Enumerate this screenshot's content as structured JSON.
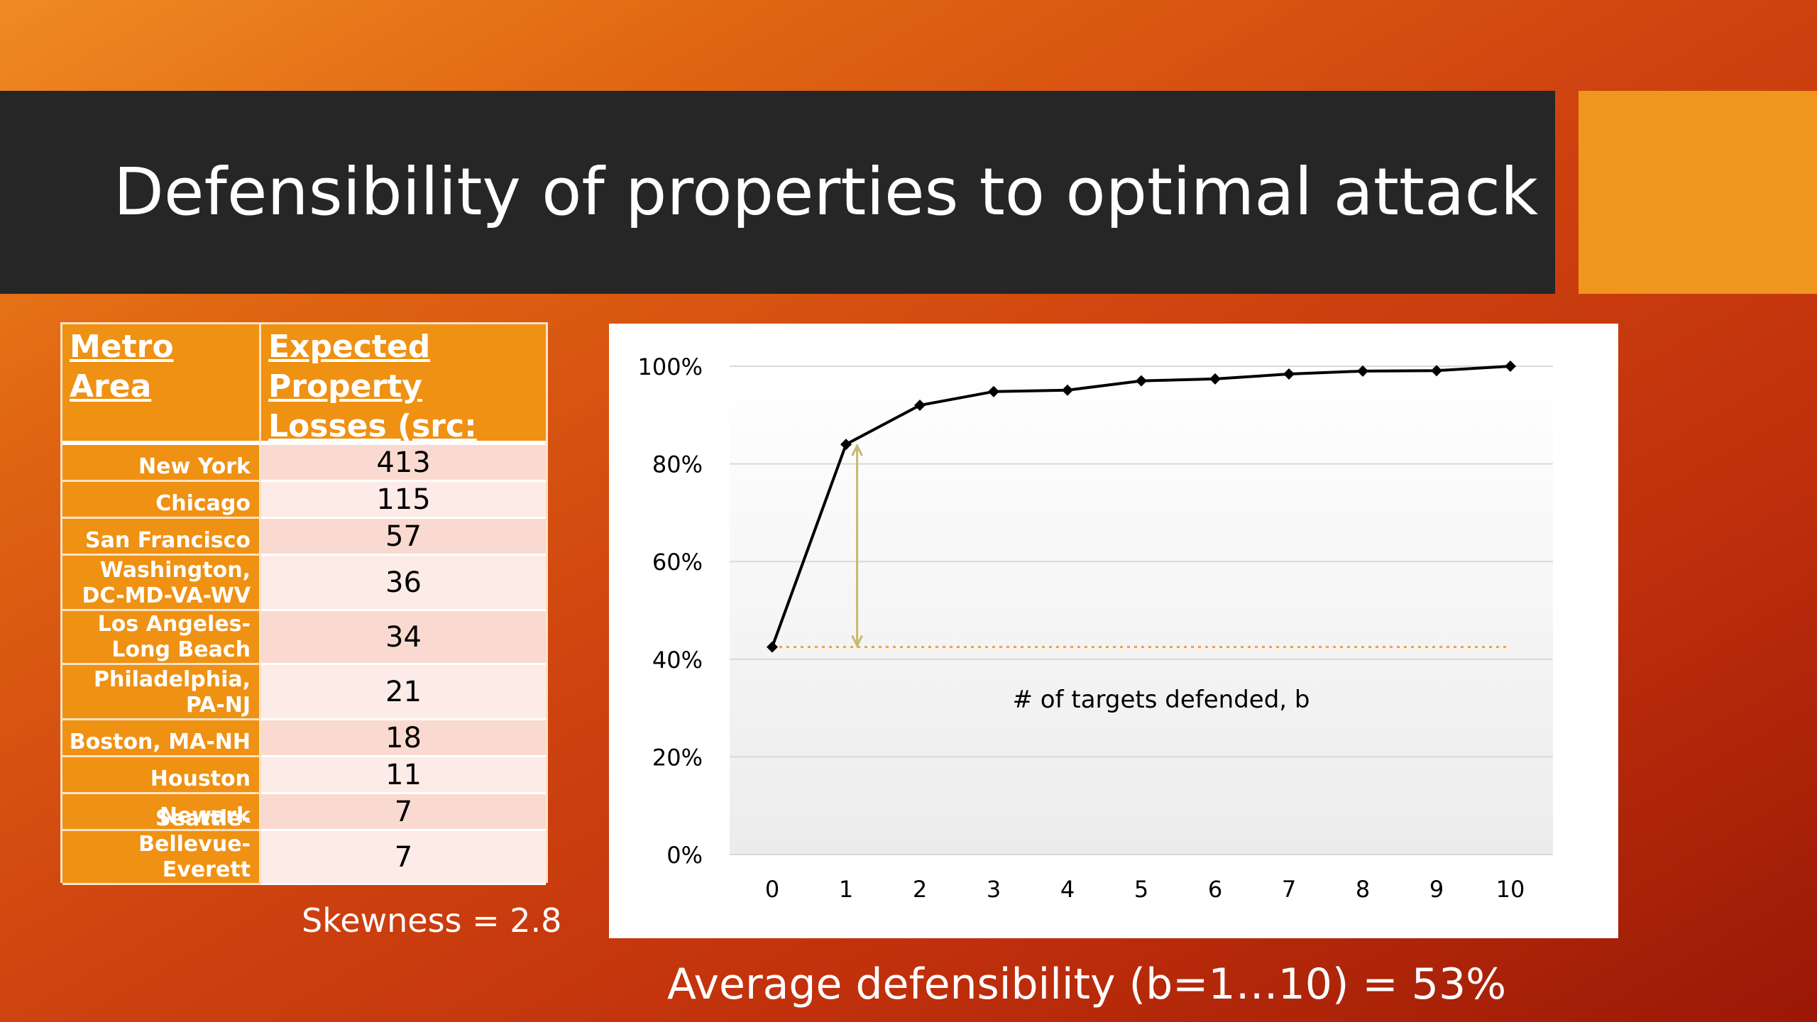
{
  "slide": {
    "title": "Defensibility of properties to optimal attack",
    "skewness": "Skewness = 2.8",
    "average": "Average defensibility (b=1…10) = 53%"
  },
  "table": {
    "headers": [
      "Metro Area",
      "Expected Property Losses (src: Rand, $M)"
    ],
    "rows": [
      {
        "area": "New York",
        "loss": "413"
      },
      {
        "area": "Chicago",
        "loss": "115"
      },
      {
        "area": "San Francisco",
        "loss": "57"
      },
      {
        "area": "Washington, DC-MD-VA-WV",
        "loss": "36"
      },
      {
        "area": "Los Angeles-Long Beach",
        "loss": "34"
      },
      {
        "area": "Philadelphia, PA-NJ",
        "loss": "21"
      },
      {
        "area": "Boston, MA-NH",
        "loss": "18"
      },
      {
        "area": "Houston",
        "loss": "11"
      },
      {
        "area": "Newark",
        "loss": "7"
      },
      {
        "area": "Seattle-Bellevue-Everett",
        "loss": "7"
      }
    ]
  },
  "chart_data": {
    "type": "line",
    "xlabel": "# of targets defended, b",
    "ylabel": "",
    "x": [
      0,
      1,
      2,
      3,
      4,
      5,
      6,
      7,
      8,
      9,
      10
    ],
    "y": [
      0.425,
      0.84,
      0.92,
      0.948,
      0.951,
      0.97,
      0.974,
      0.984,
      0.99,
      0.991,
      1.0
    ],
    "ylim": [
      0,
      1
    ],
    "yticks": [
      "0%",
      "20%",
      "40%",
      "60%",
      "80%",
      "100%"
    ],
    "xticks": [
      "0",
      "1",
      "2",
      "3",
      "4",
      "5",
      "6",
      "7",
      "8",
      "9",
      "10"
    ],
    "grid": true,
    "series_color": "#000000",
    "baseline_color": "#f0a040",
    "arrow_color": "#c8b870",
    "annotation": {
      "baseline_y": 0.425,
      "arrow_from": 0.425,
      "arrow_to": 0.84,
      "arrow_x": 1.15
    }
  }
}
